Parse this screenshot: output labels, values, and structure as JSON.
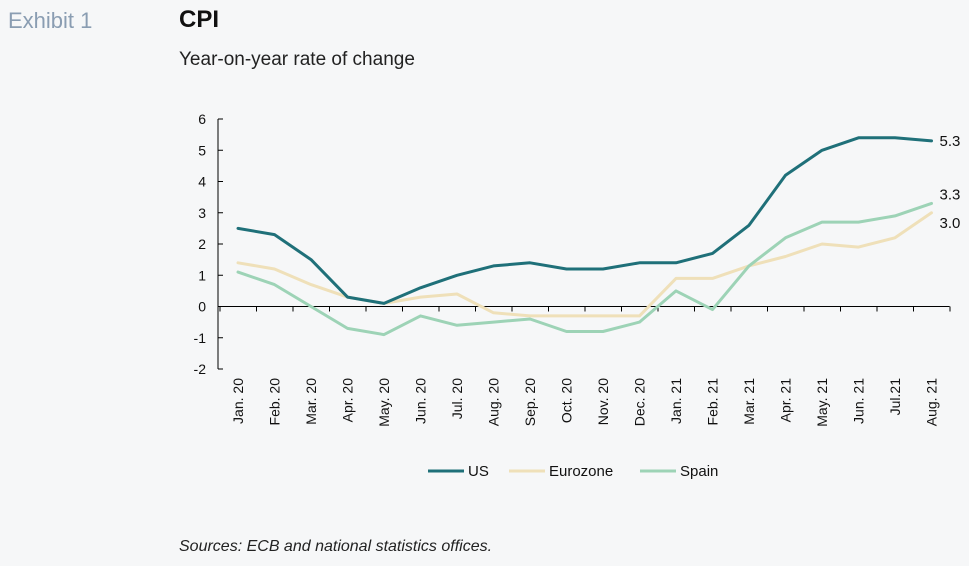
{
  "header": {
    "exhibit_label": "Exhibit 1",
    "title": "CPI",
    "subtitle": "Year-on-year rate of change"
  },
  "footer": {
    "source": "Sources: ECB and national statistics offices."
  },
  "chart_data": {
    "type": "line",
    "categories": [
      "Jan. 20",
      "Feb. 20",
      "Mar. 20",
      "Apr. 20",
      "May. 20",
      "Jun. 20",
      "Jul. 20",
      "Aug. 20",
      "Sep. 20",
      "Oct. 20",
      "Nov. 20",
      "Dec. 20",
      "Jan. 21",
      "Feb. 21",
      "Mar. 21",
      "Apr. 21",
      "May. 21",
      "Jun. 21",
      "Jul.21",
      "Aug. 21"
    ],
    "ylim": [
      -2,
      6
    ],
    "yticks": [
      6,
      5,
      4,
      3,
      2,
      1,
      0,
      -1,
      -2
    ],
    "ytick_labels": [
      "6",
      "5",
      "4",
      "3",
      "2",
      "1",
      "0",
      "-1",
      "-2"
    ],
    "series": [
      {
        "name": "US",
        "color": "#1f7079",
        "values": [
          2.5,
          2.3,
          1.5,
          0.3,
          0.1,
          0.6,
          1.0,
          1.3,
          1.4,
          1.2,
          1.2,
          1.4,
          1.4,
          1.7,
          2.6,
          4.2,
          5.0,
          5.4,
          5.4,
          5.3
        ],
        "end_label": "5.3"
      },
      {
        "name": "Eurozone",
        "color": "#efe0b9",
        "values": [
          1.4,
          1.2,
          0.7,
          0.3,
          0.1,
          0.3,
          0.4,
          -0.2,
          -0.3,
          -0.3,
          -0.3,
          -0.3,
          0.9,
          0.9,
          1.3,
          1.6,
          2.0,
          1.9,
          2.2,
          3.0
        ],
        "end_label": "3.0"
      },
      {
        "name": "Spain",
        "color": "#9dd3b6",
        "values": [
          1.1,
          0.7,
          0.0,
          -0.7,
          -0.9,
          -0.3,
          -0.6,
          -0.5,
          -0.4,
          -0.8,
          -0.8,
          -0.5,
          0.5,
          -0.1,
          1.3,
          2.2,
          2.7,
          2.7,
          2.9,
          3.3
        ],
        "end_label": "3.3"
      }
    ],
    "legend_position": "bottom-center",
    "grid": false
  }
}
